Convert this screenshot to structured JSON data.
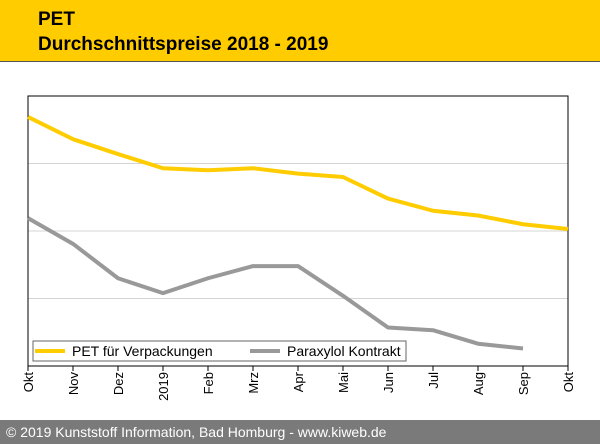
{
  "header": {
    "title": "PET",
    "subtitle": "Durchschnittspreise 2018 - 2019",
    "bg_color": "#ffcc00"
  },
  "footer": {
    "text": "© 2019 Kunststoff Information, Bad Homburg - www.kiweb.de"
  },
  "chart_data": {
    "type": "line",
    "title": "PET Durchschnittspreise 2018 - 2019",
    "xlabel": "",
    "ylabel": "",
    "categories": [
      "Okt",
      "Nov",
      "Dez",
      "2019",
      "Feb",
      "Mrz",
      "Apr",
      "Mai",
      "Jun",
      "Jul",
      "Aug",
      "Sep",
      "Okt"
    ],
    "ylim": [
      0,
      4
    ],
    "y_tick_labels_shown": false,
    "grid": true,
    "legend_placement": "bottom-left",
    "series": [
      {
        "name": "PET für Verpackungen",
        "color": "#ffcc00",
        "values": [
          3.69,
          3.36,
          3.14,
          2.93,
          2.9,
          2.93,
          2.85,
          2.8,
          2.48,
          2.3,
          2.23,
          2.1,
          2.03
        ]
      },
      {
        "name": "Paraxylol Kontrakt",
        "color": "#999999",
        "values": [
          2.19,
          1.81,
          1.3,
          1.08,
          1.3,
          1.48,
          1.48,
          1.04,
          0.57,
          0.53,
          0.33,
          0.26,
          null
        ]
      }
    ]
  }
}
